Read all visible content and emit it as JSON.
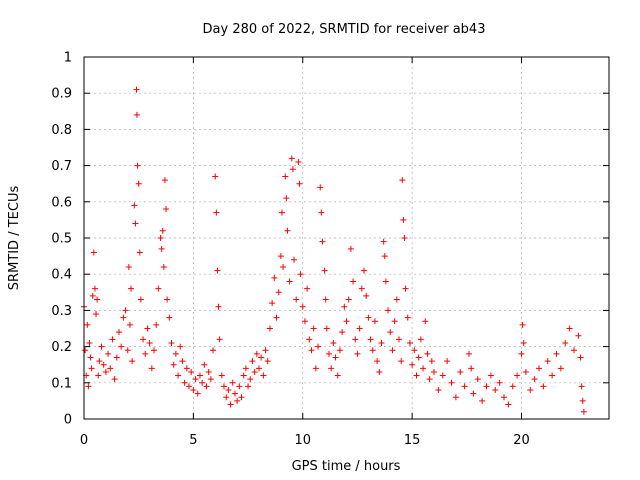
{
  "chart_data": {
    "type": "scatter",
    "title": "Day 280 of 2022, SRMTID for receiver ab43",
    "xlabel": "GPS time / hours",
    "ylabel": "SRMTID / TECUs",
    "xlim": [
      0,
      24
    ],
    "ylim": [
      0,
      1
    ],
    "xticks": [
      0,
      5,
      10,
      15,
      20
    ],
    "xtick_labels": [
      "0",
      "5",
      "10",
      "15",
      "20"
    ],
    "yticks": [
      0,
      0.1,
      0.2,
      0.3,
      0.4,
      0.5,
      0.6,
      0.7,
      0.8,
      0.9,
      1
    ],
    "ytick_labels": [
      "0",
      "0.1",
      "0.2",
      "0.3",
      "0.4",
      "0.5",
      "0.6",
      "0.7",
      "0.8",
      "0.9",
      "1"
    ],
    "grid": true,
    "marker": "+",
    "color": "#ff0000",
    "series": [
      {
        "name": "SRMTID",
        "points": [
          [
            0.0,
            0.31
          ],
          [
            0.05,
            0.19
          ],
          [
            0.1,
            0.12
          ],
          [
            0.15,
            0.26
          ],
          [
            0.2,
            0.09
          ],
          [
            0.25,
            0.21
          ],
          [
            0.3,
            0.17
          ],
          [
            0.35,
            0.14
          ],
          [
            0.4,
            0.34
          ],
          [
            0.45,
            0.46
          ],
          [
            0.5,
            0.36
          ],
          [
            0.55,
            0.29
          ],
          [
            0.6,
            0.33
          ],
          [
            0.65,
            0.12
          ],
          [
            0.7,
            0.16
          ],
          [
            0.8,
            0.2
          ],
          [
            0.9,
            0.15
          ],
          [
            1.0,
            0.13
          ],
          [
            1.1,
            0.18
          ],
          [
            1.2,
            0.14
          ],
          [
            1.3,
            0.22
          ],
          [
            1.4,
            0.11
          ],
          [
            1.5,
            0.17
          ],
          [
            1.6,
            0.24
          ],
          [
            1.7,
            0.2
          ],
          [
            1.8,
            0.28
          ],
          [
            1.9,
            0.3
          ],
          [
            2.0,
            0.19
          ],
          [
            2.05,
            0.42
          ],
          [
            2.1,
            0.26
          ],
          [
            2.15,
            0.36
          ],
          [
            2.2,
            0.16
          ],
          [
            2.3,
            0.59
          ],
          [
            2.35,
            0.54
          ],
          [
            2.4,
            0.91
          ],
          [
            2.42,
            0.84
          ],
          [
            2.45,
            0.7
          ],
          [
            2.5,
            0.65
          ],
          [
            2.55,
            0.46
          ],
          [
            2.6,
            0.33
          ],
          [
            2.7,
            0.22
          ],
          [
            2.8,
            0.18
          ],
          [
            2.9,
            0.25
          ],
          [
            3.0,
            0.21
          ],
          [
            3.1,
            0.14
          ],
          [
            3.2,
            0.19
          ],
          [
            3.3,
            0.26
          ],
          [
            3.4,
            0.36
          ],
          [
            3.5,
            0.5
          ],
          [
            3.55,
            0.47
          ],
          [
            3.6,
            0.52
          ],
          [
            3.65,
            0.42
          ],
          [
            3.7,
            0.66
          ],
          [
            3.75,
            0.58
          ],
          [
            3.8,
            0.33
          ],
          [
            3.9,
            0.28
          ],
          [
            4.0,
            0.21
          ],
          [
            4.1,
            0.15
          ],
          [
            4.2,
            0.18
          ],
          [
            4.3,
            0.12
          ],
          [
            4.4,
            0.2
          ],
          [
            4.5,
            0.16
          ],
          [
            4.6,
            0.1
          ],
          [
            4.7,
            0.14
          ],
          [
            4.8,
            0.09
          ],
          [
            4.9,
            0.13
          ],
          [
            5.0,
            0.08
          ],
          [
            5.1,
            0.11
          ],
          [
            5.2,
            0.07
          ],
          [
            5.3,
            0.12
          ],
          [
            5.4,
            0.1
          ],
          [
            5.5,
            0.15
          ],
          [
            5.6,
            0.09
          ],
          [
            5.7,
            0.13
          ],
          [
            5.8,
            0.11
          ],
          [
            5.9,
            0.19
          ],
          [
            6.0,
            0.67
          ],
          [
            6.05,
            0.57
          ],
          [
            6.1,
            0.41
          ],
          [
            6.15,
            0.31
          ],
          [
            6.2,
            0.22
          ],
          [
            6.3,
            0.12
          ],
          [
            6.4,
            0.09
          ],
          [
            6.5,
            0.06
          ],
          [
            6.6,
            0.08
          ],
          [
            6.7,
            0.04
          ],
          [
            6.8,
            0.1
          ],
          [
            6.9,
            0.07
          ],
          [
            7.0,
            0.05
          ],
          [
            7.1,
            0.09
          ],
          [
            7.2,
            0.06
          ],
          [
            7.3,
            0.12
          ],
          [
            7.4,
            0.14
          ],
          [
            7.5,
            0.09
          ],
          [
            7.6,
            0.11
          ],
          [
            7.7,
            0.16
          ],
          [
            7.8,
            0.13
          ],
          [
            7.9,
            0.18
          ],
          [
            8.0,
            0.14
          ],
          [
            8.1,
            0.17
          ],
          [
            8.2,
            0.12
          ],
          [
            8.3,
            0.19
          ],
          [
            8.4,
            0.16
          ],
          [
            8.5,
            0.25
          ],
          [
            8.6,
            0.32
          ],
          [
            8.7,
            0.39
          ],
          [
            8.8,
            0.28
          ],
          [
            8.9,
            0.35
          ],
          [
            9.0,
            0.45
          ],
          [
            9.05,
            0.57
          ],
          [
            9.1,
            0.42
          ],
          [
            9.2,
            0.67
          ],
          [
            9.25,
            0.61
          ],
          [
            9.3,
            0.52
          ],
          [
            9.4,
            0.38
          ],
          [
            9.5,
            0.72
          ],
          [
            9.55,
            0.69
          ],
          [
            9.6,
            0.44
          ],
          [
            9.7,
            0.33
          ],
          [
            9.8,
            0.71
          ],
          [
            9.85,
            0.65
          ],
          [
            9.9,
            0.4
          ],
          [
            10.0,
            0.31
          ],
          [
            10.1,
            0.27
          ],
          [
            10.2,
            0.36
          ],
          [
            10.3,
            0.22
          ],
          [
            10.4,
            0.19
          ],
          [
            10.5,
            0.25
          ],
          [
            10.6,
            0.14
          ],
          [
            10.7,
            0.2
          ],
          [
            10.8,
            0.64
          ],
          [
            10.85,
            0.57
          ],
          [
            10.9,
            0.49
          ],
          [
            11.0,
            0.41
          ],
          [
            11.05,
            0.33
          ],
          [
            11.1,
            0.25
          ],
          [
            11.2,
            0.18
          ],
          [
            11.3,
            0.14
          ],
          [
            11.4,
            0.21
          ],
          [
            11.5,
            0.17
          ],
          [
            11.6,
            0.12
          ],
          [
            11.7,
            0.19
          ],
          [
            11.8,
            0.24
          ],
          [
            11.9,
            0.31
          ],
          [
            12.0,
            0.27
          ],
          [
            12.1,
            0.33
          ],
          [
            12.2,
            0.47
          ],
          [
            12.3,
            0.38
          ],
          [
            12.4,
            0.22
          ],
          [
            12.5,
            0.18
          ],
          [
            12.6,
            0.25
          ],
          [
            12.7,
            0.36
          ],
          [
            12.8,
            0.41
          ],
          [
            12.9,
            0.34
          ],
          [
            13.0,
            0.28
          ],
          [
            13.1,
            0.22
          ],
          [
            13.2,
            0.19
          ],
          [
            13.3,
            0.27
          ],
          [
            13.4,
            0.16
          ],
          [
            13.5,
            0.13
          ],
          [
            13.6,
            0.21
          ],
          [
            13.7,
            0.49
          ],
          [
            13.75,
            0.45
          ],
          [
            13.8,
            0.38
          ],
          [
            13.9,
            0.3
          ],
          [
            14.0,
            0.24
          ],
          [
            14.1,
            0.19
          ],
          [
            14.2,
            0.27
          ],
          [
            14.3,
            0.33
          ],
          [
            14.4,
            0.22
          ],
          [
            14.5,
            0.16
          ],
          [
            14.55,
            0.66
          ],
          [
            14.6,
            0.55
          ],
          [
            14.65,
            0.5
          ],
          [
            14.7,
            0.36
          ],
          [
            14.8,
            0.28
          ],
          [
            14.9,
            0.21
          ],
          [
            15.0,
            0.15
          ],
          [
            15.1,
            0.19
          ],
          [
            15.2,
            0.12
          ],
          [
            15.3,
            0.17
          ],
          [
            15.4,
            0.22
          ],
          [
            15.5,
            0.14
          ],
          [
            15.6,
            0.27
          ],
          [
            15.7,
            0.18
          ],
          [
            15.8,
            0.11
          ],
          [
            15.9,
            0.16
          ],
          [
            16.0,
            0.13
          ],
          [
            16.2,
            0.08
          ],
          [
            16.4,
            0.12
          ],
          [
            16.6,
            0.16
          ],
          [
            16.8,
            0.1
          ],
          [
            17.0,
            0.06
          ],
          [
            17.2,
            0.13
          ],
          [
            17.4,
            0.09
          ],
          [
            17.6,
            0.18
          ],
          [
            17.7,
            0.14
          ],
          [
            17.8,
            0.07
          ],
          [
            18.0,
            0.11
          ],
          [
            18.2,
            0.05
          ],
          [
            18.4,
            0.09
          ],
          [
            18.6,
            0.12
          ],
          [
            18.8,
            0.08
          ],
          [
            19.0,
            0.1
          ],
          [
            19.2,
            0.06
          ],
          [
            19.4,
            0.04
          ],
          [
            19.6,
            0.09
          ],
          [
            19.8,
            0.12
          ],
          [
            20.0,
            0.18
          ],
          [
            20.05,
            0.26
          ],
          [
            20.1,
            0.21
          ],
          [
            20.2,
            0.13
          ],
          [
            20.4,
            0.08
          ],
          [
            20.6,
            0.11
          ],
          [
            20.8,
            0.14
          ],
          [
            21.0,
            0.09
          ],
          [
            21.2,
            0.16
          ],
          [
            21.4,
            0.12
          ],
          [
            21.6,
            0.18
          ],
          [
            21.8,
            0.14
          ],
          [
            22.0,
            0.21
          ],
          [
            22.2,
            0.25
          ],
          [
            22.4,
            0.19
          ],
          [
            22.6,
            0.23
          ],
          [
            22.7,
            0.17
          ],
          [
            22.75,
            0.09
          ],
          [
            22.8,
            0.05
          ],
          [
            22.85,
            0.02
          ]
        ]
      }
    ]
  }
}
